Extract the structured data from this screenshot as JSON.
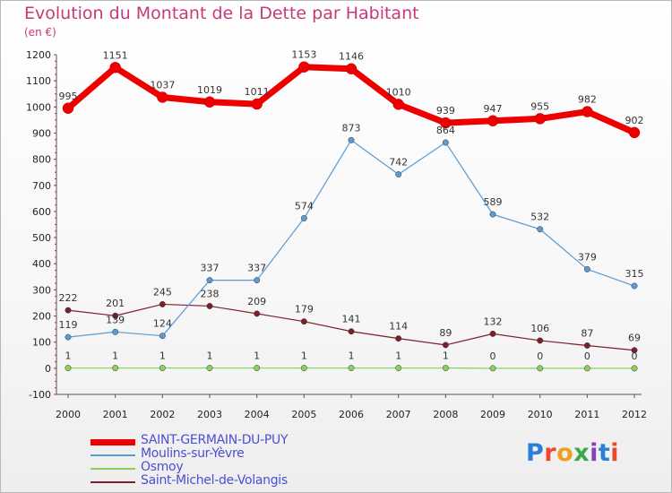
{
  "header": {
    "title": "Evolution du Montant de la Dette par Habitant",
    "unit": "(en €)"
  },
  "chart_data": {
    "type": "line",
    "x": [
      "2000",
      "2001",
      "2002",
      "2003",
      "2004",
      "2005",
      "2006",
      "2007",
      "2008",
      "2009",
      "2010",
      "2011",
      "2012"
    ],
    "yticks": [
      1200,
      1100,
      1000,
      900,
      800,
      700,
      600,
      500,
      400,
      300,
      200,
      100,
      0,
      -100
    ],
    "ylim": [
      -100,
      1200
    ],
    "grid": false,
    "legend_position": "bottom-left",
    "series": [
      {
        "name": "SAINT-GERMAIN-DU-PUY",
        "color": "#ee0000",
        "values": [
          995,
          1151,
          1037,
          1019,
          1011,
          1153,
          1146,
          1010,
          939,
          947,
          955,
          982,
          902
        ]
      },
      {
        "name": "Moulins-sur-Yèvre",
        "color": "#5b9bd5",
        "values": [
          119,
          139,
          124,
          337,
          337,
          574,
          873,
          742,
          864,
          589,
          532,
          379,
          315
        ]
      },
      {
        "name": "Osmoy",
        "color": "#8cd05a",
        "values": [
          1,
          1,
          1,
          1,
          1,
          1,
          1,
          1,
          1,
          0,
          0,
          0,
          0
        ]
      },
      {
        "name": "Saint-Michel-de-Volangis",
        "color": "#7a1f2b",
        "values": [
          222,
          201,
          245,
          238,
          209,
          179,
          141,
          114,
          89,
          132,
          106,
          87,
          69
        ]
      }
    ]
  },
  "logo": {
    "letters": [
      "P",
      "r",
      "o",
      "x",
      "i",
      "t",
      "i"
    ],
    "colors": [
      "#2a7fd8",
      "#e84a2a",
      "#f0a020",
      "#3aa845",
      "#8a3fb8",
      "#2a7fd8",
      "#e84a2a"
    ]
  }
}
